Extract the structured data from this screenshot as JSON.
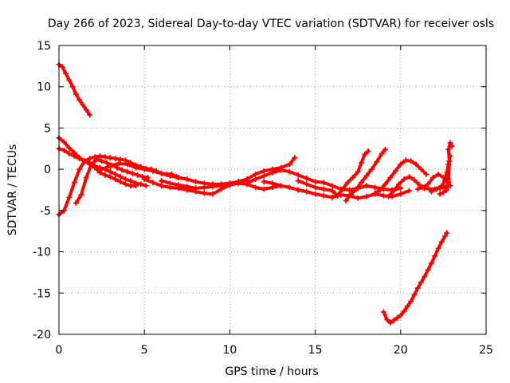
{
  "chart_data": {
    "type": "scatter",
    "title": "Day 266 of 2023, Sidereal Day-to-day VTEC variation (SDTVAR) for receiver osls",
    "xlabel": "GPS time / hours",
    "ylabel": "SDTVAR / TECUs",
    "xlim": [
      0,
      25
    ],
    "ylim": [
      -20,
      15
    ],
    "xticks": [
      0,
      5,
      10,
      15,
      20,
      25
    ],
    "yticks": [
      -20,
      -15,
      -10,
      -5,
      0,
      5,
      10,
      15
    ],
    "grid": true,
    "marker": "plus",
    "series_color": "#ff0000",
    "series": [
      {
        "name": "arc-top-left",
        "points": [
          [
            0.0,
            12.7
          ],
          [
            0.2,
            12.4
          ],
          [
            0.4,
            11.6
          ],
          [
            0.6,
            10.8
          ],
          [
            0.8,
            10.0
          ],
          [
            1.0,
            9.1
          ],
          [
            1.2,
            8.4
          ],
          [
            1.4,
            7.8
          ],
          [
            1.6,
            7.2
          ],
          [
            1.8,
            6.6
          ]
        ]
      },
      {
        "name": "arc-bottom-right",
        "points": [
          [
            19.0,
            -17.3
          ],
          [
            19.2,
            -18.2
          ],
          [
            19.4,
            -18.6
          ],
          [
            19.6,
            -18.3
          ],
          [
            19.8,
            -18.0
          ],
          [
            20.0,
            -17.7
          ],
          [
            20.2,
            -17.2
          ],
          [
            20.4,
            -16.6
          ],
          [
            20.6,
            -16.0
          ],
          [
            20.8,
            -15.2
          ],
          [
            21.0,
            -14.4
          ],
          [
            21.2,
            -13.7
          ],
          [
            21.4,
            -13.0
          ],
          [
            21.6,
            -12.2
          ],
          [
            21.8,
            -11.4
          ],
          [
            22.0,
            -10.5
          ],
          [
            22.2,
            -9.6
          ],
          [
            22.4,
            -8.8
          ],
          [
            22.6,
            -8.1
          ],
          [
            22.7,
            -7.7
          ]
        ]
      },
      {
        "name": "arc-rise-1",
        "points": [
          [
            0.0,
            -5.5
          ],
          [
            0.3,
            -5.0
          ],
          [
            0.6,
            -3.4
          ],
          [
            0.9,
            -1.6
          ],
          [
            1.2,
            0.0
          ],
          [
            1.5,
            1.0
          ],
          [
            1.8,
            0.8
          ],
          [
            2.1,
            0.2
          ],
          [
            2.4,
            -0.4
          ],
          [
            2.7,
            -0.7
          ],
          [
            3.0,
            -0.9
          ],
          [
            3.3,
            -1.2
          ],
          [
            3.6,
            -1.5
          ],
          [
            3.9,
            -1.8
          ],
          [
            4.2,
            -2.0
          ],
          [
            4.5,
            -2.0
          ]
        ]
      },
      {
        "name": "arc-rise-2",
        "points": [
          [
            1.0,
            -4.1
          ],
          [
            1.3,
            -3.1
          ],
          [
            1.6,
            -1.0
          ],
          [
            1.9,
            0.6
          ],
          [
            2.2,
            1.2
          ],
          [
            2.5,
            1.0
          ],
          [
            2.8,
            0.8
          ],
          [
            3.1,
            0.5
          ],
          [
            3.4,
            0.2
          ],
          [
            3.7,
            -0.1
          ],
          [
            4.0,
            -0.3
          ],
          [
            4.3,
            -0.5
          ],
          [
            4.6,
            -0.7
          ],
          [
            4.9,
            -0.9
          ],
          [
            5.2,
            -1.0
          ]
        ]
      },
      {
        "name": "arc-fall-1",
        "points": [
          [
            0.0,
            3.8
          ],
          [
            0.3,
            3.3
          ],
          [
            0.6,
            2.6
          ],
          [
            0.9,
            2.0
          ],
          [
            1.2,
            1.4
          ],
          [
            1.5,
            1.0
          ],
          [
            1.8,
            0.6
          ],
          [
            2.1,
            0.4
          ],
          [
            2.4,
            0.2
          ],
          [
            2.7,
            0.0
          ],
          [
            3.0,
            -0.3
          ],
          [
            3.3,
            -0.6
          ],
          [
            3.6,
            -0.9
          ],
          [
            3.9,
            -1.2
          ],
          [
            4.2,
            -1.4
          ],
          [
            4.5,
            -1.7
          ],
          [
            4.8,
            -1.8
          ],
          [
            5.1,
            -2.0
          ]
        ]
      },
      {
        "name": "arc-fall-2",
        "points": [
          [
            0.0,
            2.5
          ],
          [
            0.3,
            2.3
          ],
          [
            0.6,
            1.9
          ],
          [
            0.9,
            1.6
          ],
          [
            1.2,
            1.3
          ],
          [
            1.5,
            1.0
          ],
          [
            1.8,
            1.3
          ],
          [
            2.1,
            1.5
          ],
          [
            2.4,
            1.6
          ],
          [
            2.7,
            1.5
          ],
          [
            3.0,
            1.4
          ],
          [
            3.3,
            1.3
          ],
          [
            3.6,
            1.2
          ],
          [
            3.9,
            1.1
          ],
          [
            4.2,
            0.8
          ],
          [
            4.5,
            0.5
          ],
          [
            4.8,
            0.3
          ],
          [
            5.1,
            0.1
          ],
          [
            5.4,
            0.0
          ],
          [
            5.7,
            -0.2
          ],
          [
            6.0,
            -0.5
          ],
          [
            6.3,
            -0.6
          ],
          [
            6.6,
            -0.6
          ],
          [
            6.9,
            -0.9
          ]
        ]
      },
      {
        "name": "arc-mid-1",
        "points": [
          [
            2.5,
            0.0
          ],
          [
            3.0,
            0.4
          ],
          [
            3.5,
            0.7
          ],
          [
            4.0,
            0.6
          ],
          [
            4.5,
            0.2
          ],
          [
            5.0,
            0.0
          ],
          [
            5.5,
            -0.2
          ],
          [
            6.0,
            -0.5
          ],
          [
            6.5,
            -0.8
          ],
          [
            7.0,
            -1.0
          ],
          [
            7.5,
            -1.2
          ],
          [
            8.0,
            -1.5
          ],
          [
            8.5,
            -1.7
          ],
          [
            9.0,
            -1.8
          ],
          [
            9.5,
            -1.8
          ],
          [
            10.0,
            -1.7
          ],
          [
            10.5,
            -1.5
          ],
          [
            11.0,
            -1.3
          ]
        ]
      },
      {
        "name": "arc-mid-2",
        "points": [
          [
            5.0,
            -1.2
          ],
          [
            5.5,
            -1.6
          ],
          [
            6.0,
            -2.0
          ],
          [
            6.5,
            -2.2
          ],
          [
            7.0,
            -2.3
          ],
          [
            7.5,
            -2.5
          ],
          [
            8.0,
            -2.7
          ],
          [
            8.5,
            -2.9
          ],
          [
            9.0,
            -3.0
          ],
          [
            9.5,
            -2.4
          ],
          [
            10.0,
            -1.9
          ],
          [
            10.5,
            -1.7
          ],
          [
            11.0,
            -1.8
          ],
          [
            11.5,
            -2.2
          ],
          [
            12.0,
            -2.4
          ],
          [
            12.5,
            -2.2
          ],
          [
            13.0,
            -2.0
          ]
        ]
      },
      {
        "name": "arc-mid-3",
        "points": [
          [
            6.0,
            -1.4
          ],
          [
            6.5,
            -1.7
          ],
          [
            7.0,
            -1.9
          ],
          [
            7.5,
            -2.1
          ],
          [
            8.0,
            -2.3
          ],
          [
            8.5,
            -2.2
          ],
          [
            9.0,
            -2.1
          ],
          [
            9.5,
            -2.0
          ],
          [
            10.0,
            -1.7
          ],
          [
            10.5,
            -1.5
          ],
          [
            11.0,
            -1.2
          ],
          [
            11.5,
            -0.6
          ],
          [
            12.0,
            -0.2
          ],
          [
            12.5,
            0.0
          ],
          [
            13.0,
            0.2
          ],
          [
            13.5,
            0.6
          ],
          [
            13.8,
            1.4
          ]
        ]
      },
      {
        "name": "arc-mid-4",
        "points": [
          [
            11.0,
            -1.7
          ],
          [
            11.5,
            -1.2
          ],
          [
            12.0,
            -0.8
          ],
          [
            12.5,
            -0.4
          ],
          [
            13.0,
            -0.1
          ],
          [
            13.5,
            -0.3
          ],
          [
            14.0,
            -0.7
          ],
          [
            14.5,
            -1.1
          ],
          [
            15.0,
            -1.5
          ],
          [
            15.5,
            -1.6
          ],
          [
            16.0,
            -2.0
          ],
          [
            16.5,
            -2.4
          ],
          [
            17.0,
            -2.5
          ],
          [
            17.5,
            -2.3
          ],
          [
            18.0,
            -2.0
          ],
          [
            18.5,
            -2.2
          ],
          [
            19.0,
            -2.4
          ],
          [
            19.5,
            -2.5
          ],
          [
            20.0,
            -2.3
          ]
        ]
      },
      {
        "name": "arc-mid-5",
        "points": [
          [
            12.0,
            -1.5
          ],
          [
            12.5,
            -1.7
          ],
          [
            13.0,
            -2.0
          ],
          [
            13.5,
            -2.2
          ],
          [
            14.0,
            -2.5
          ],
          [
            14.5,
            -2.7
          ],
          [
            15.0,
            -3.0
          ],
          [
            15.5,
            -3.2
          ],
          [
            16.0,
            -3.4
          ],
          [
            16.5,
            -3.1
          ],
          [
            17.0,
            -3.2
          ],
          [
            17.5,
            -3.5
          ],
          [
            18.0,
            -3.3
          ],
          [
            18.5,
            -3.0
          ],
          [
            19.0,
            -3.2
          ],
          [
            19.5,
            -3.3
          ],
          [
            20.0,
            -3.0
          ],
          [
            20.5,
            -2.6
          ]
        ]
      },
      {
        "name": "arc-mid-6",
        "points": [
          [
            14.0,
            -1.4
          ],
          [
            14.5,
            -1.8
          ],
          [
            15.0,
            -2.2
          ],
          [
            15.5,
            -2.4
          ],
          [
            16.0,
            -2.6
          ],
          [
            16.3,
            -3.2
          ],
          [
            16.6,
            -2.4
          ],
          [
            16.9,
            -1.6
          ],
          [
            17.2,
            -1.0
          ],
          [
            17.5,
            -0.3
          ],
          [
            17.7,
            0.8
          ],
          [
            17.9,
            1.8
          ],
          [
            18.1,
            2.2
          ]
        ]
      },
      {
        "name": "arc-mid-7",
        "points": [
          [
            16.8,
            -3.8
          ],
          [
            17.1,
            -3.0
          ],
          [
            17.4,
            -2.4
          ],
          [
            17.7,
            -1.6
          ],
          [
            18.0,
            -0.8
          ],
          [
            18.3,
            0.0
          ],
          [
            18.6,
            0.9
          ],
          [
            18.9,
            1.9
          ],
          [
            19.1,
            2.4
          ]
        ]
      },
      {
        "name": "arc-mid-8",
        "points": [
          [
            18.5,
            -2.9
          ],
          [
            18.8,
            -2.5
          ],
          [
            19.1,
            -1.8
          ],
          [
            19.4,
            -1.0
          ],
          [
            19.7,
            -0.2
          ],
          [
            20.0,
            0.6
          ],
          [
            20.3,
            1.1
          ],
          [
            20.6,
            1.0
          ],
          [
            20.9,
            0.6
          ],
          [
            21.2,
            0.0
          ],
          [
            21.5,
            -0.6
          ]
        ]
      },
      {
        "name": "arc-mid-9",
        "points": [
          [
            19.3,
            -3.3
          ],
          [
            19.6,
            -2.6
          ],
          [
            19.9,
            -1.8
          ],
          [
            20.2,
            -1.2
          ],
          [
            20.5,
            -0.9
          ],
          [
            20.8,
            -1.3
          ],
          [
            21.1,
            -1.9
          ],
          [
            21.4,
            -2.3
          ],
          [
            21.7,
            -2.4
          ],
          [
            22.0,
            -2.4
          ],
          [
            22.3,
            -2.3
          ],
          [
            22.6,
            -2.2
          ],
          [
            22.8,
            -1.9
          ]
        ]
      },
      {
        "name": "arc-end-1",
        "points": [
          [
            21.0,
            -2.4
          ],
          [
            21.3,
            -2.2
          ],
          [
            21.6,
            -1.8
          ],
          [
            21.9,
            -1.0
          ],
          [
            22.2,
            -0.6
          ],
          [
            22.5,
            -1.0
          ],
          [
            22.8,
            -1.5
          ],
          [
            22.9,
            -2.0
          ]
        ]
      },
      {
        "name": "arc-end-2",
        "points": [
          [
            21.8,
            -2.7
          ],
          [
            22.1,
            -2.4
          ],
          [
            22.4,
            -2.0
          ],
          [
            22.6,
            -1.4
          ],
          [
            22.7,
            -0.4
          ],
          [
            22.8,
            0.6
          ],
          [
            22.9,
            1.6
          ]
        ]
      },
      {
        "name": "arc-end-3",
        "points": [
          [
            22.3,
            -3.0
          ],
          [
            22.5,
            -2.8
          ],
          [
            22.7,
            -2.5
          ],
          [
            22.8,
            -1.2
          ],
          [
            22.85,
            1.0
          ],
          [
            22.8,
            2.4
          ],
          [
            22.9,
            3.2
          ],
          [
            23.0,
            2.8
          ]
        ]
      }
    ]
  }
}
